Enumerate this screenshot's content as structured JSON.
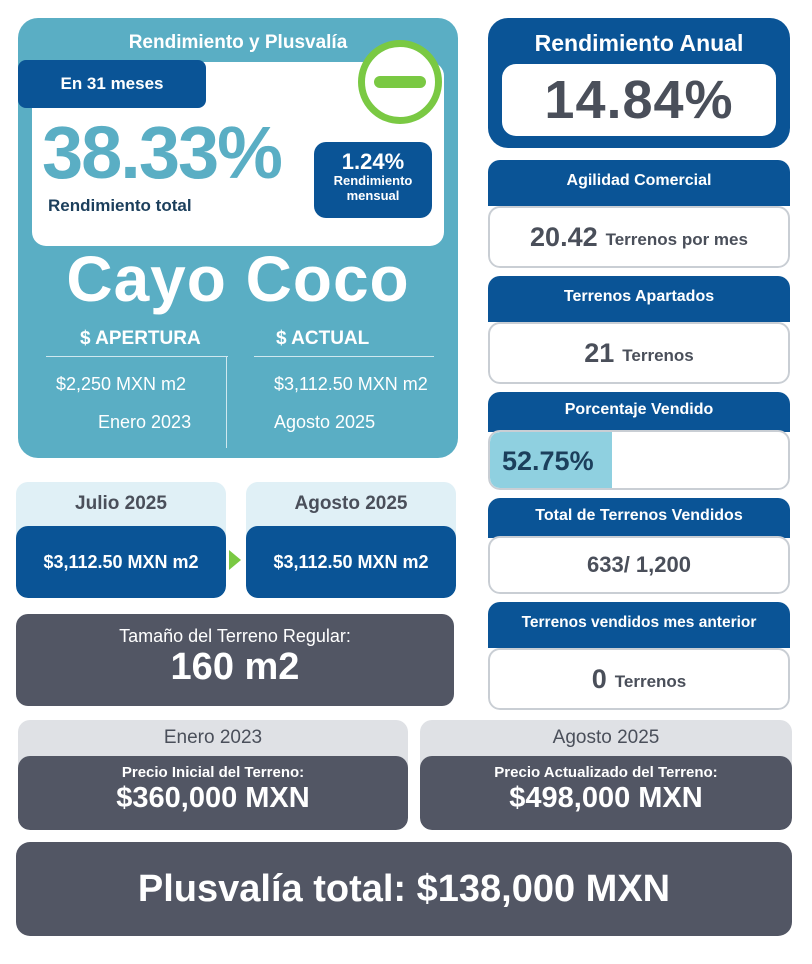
{
  "main_card": {
    "title": "Rendimiento y Plusvalía",
    "months_pill": "En 31 meses",
    "total_pct": "38.33%",
    "total_pct_label": "Rendimiento total",
    "monthly_pct": "1.24%",
    "monthly_label_1": "Rendimiento",
    "monthly_label_2": "mensual",
    "project_name": "Cayo Coco",
    "opening": {
      "header": "$ APERTURA",
      "price": "$2,250 MXN m2",
      "date": "Enero 2023"
    },
    "current": {
      "header": "$ ACTUAL",
      "price": "$3,112.50 MXN m2",
      "date": "Agosto 2025"
    },
    "indicator_icon": "minus-circle-icon",
    "indicator_color": "#7ac943"
  },
  "annual": {
    "title": "Rendimiento Anual",
    "value": "14.84%"
  },
  "stats": {
    "agility": {
      "title": "Agilidad Comercial",
      "value": "20.42",
      "unit": "Terrenos por mes"
    },
    "reserved": {
      "title": "Terrenos Apartados",
      "value": "21",
      "unit": "Terrenos"
    },
    "sold_pct": {
      "title": "Porcentaje Vendido",
      "value": "52.75%",
      "fraction": 0.5275
    },
    "total_sold": {
      "title": "Total de Terrenos Vendidos",
      "value": "633/ 1,200"
    },
    "last_month": {
      "title": "Terrenos vendidos mes anterior",
      "value": "0",
      "unit": "Terrenos"
    }
  },
  "months": {
    "previous": {
      "label": "Julio 2025",
      "price": "$3,112.50 MXN m2"
    },
    "current": {
      "label": "Agosto 2025",
      "price": "$3,112.50 MXN m2"
    }
  },
  "lot_size": {
    "label": "Tamaño del Terreno Regular:",
    "value": "160 m2"
  },
  "prices": {
    "initial": {
      "date": "Enero 2023",
      "label": "Precio Inicial del Terreno:",
      "value": "$360,000  MXN"
    },
    "updated": {
      "date": "Agosto 2025",
      "label": "Precio Actualizado del Terreno:",
      "value": "$498,000 MXN"
    }
  },
  "total_gain": "Plusvalía total: $138,000 MXN",
  "colors": {
    "teal": "#5aaec4",
    "navy": "#0a5496",
    "green": "#7ac943",
    "dark_gray": "#525664",
    "light_teal": "#8fd0e0"
  }
}
